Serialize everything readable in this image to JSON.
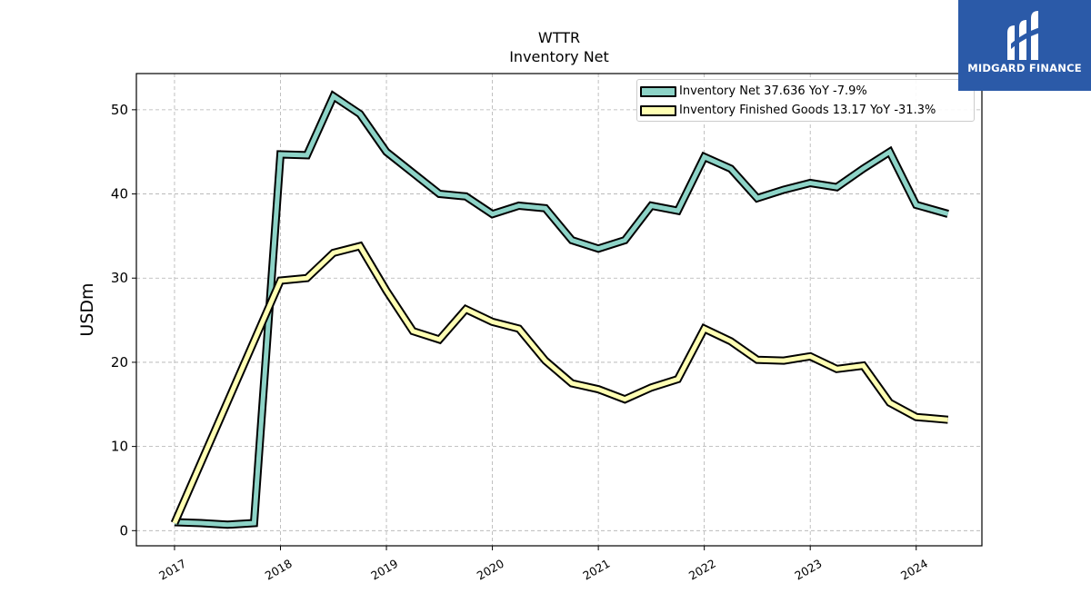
{
  "logo": {
    "name": "midgard-logo-icon",
    "text": "MIDGARD FINANCE",
    "color": "#2b5aa8"
  },
  "chart_data": {
    "type": "line",
    "title": "WTTR",
    "subtitle": "Inventory Net",
    "xlabel": "",
    "ylabel": "USDm",
    "ylim": [
      -1.8,
      54.3
    ],
    "xlim": [
      2016.64,
      2024.62
    ],
    "yticks": [
      0,
      10,
      20,
      30,
      40,
      50
    ],
    "xticks": [
      2017,
      2018,
      2019,
      2020,
      2021,
      2022,
      2023,
      2024
    ],
    "xtick_labels": [
      "2017",
      "2018",
      "2019",
      "2020",
      "2021",
      "2022",
      "2023",
      "2024"
    ],
    "grid": true,
    "legend_position": "top-right",
    "series": [
      {
        "name": "Inventory Net  37.636 YoY -7.9%",
        "color": "#8dd3c7",
        "x": [
          2017.0,
          2017.25,
          2017.5,
          2017.75,
          2018.0,
          2018.25,
          2018.5,
          2018.75,
          2019.0,
          2019.25,
          2019.5,
          2019.75,
          2020.0,
          2020.25,
          2020.5,
          2020.75,
          2021.0,
          2021.25,
          2021.5,
          2021.75,
          2022.0,
          2022.25,
          2022.5,
          2022.75,
          2023.0,
          2023.25,
          2023.5,
          2023.75,
          2024.0,
          2024.3
        ],
        "y": [
          1.0,
          0.9,
          0.7,
          0.9,
          44.7,
          44.6,
          51.6,
          49.5,
          45.0,
          42.5,
          40.0,
          39.7,
          37.6,
          38.6,
          38.3,
          34.5,
          33.5,
          34.5,
          38.6,
          38.0,
          44.4,
          43.0,
          39.5,
          40.5,
          41.3,
          40.8,
          43.0,
          45.0,
          38.7,
          37.636
        ]
      },
      {
        "name": "Inventory Finished Goods  13.17 YoY -31.3%",
        "color": "#ffffb3",
        "x": [
          2017.0,
          2018.0,
          2018.25,
          2018.5,
          2018.75,
          2019.0,
          2019.25,
          2019.5,
          2019.75,
          2020.0,
          2020.25,
          2020.5,
          2020.75,
          2021.0,
          2021.25,
          2021.5,
          2021.75,
          2022.0,
          2022.25,
          2022.5,
          2022.75,
          2023.0,
          2023.25,
          2023.5,
          2023.75,
          2024.0,
          2024.3
        ],
        "y": [
          0.9,
          29.7,
          30.0,
          33.0,
          33.8,
          28.5,
          23.7,
          22.7,
          26.3,
          24.8,
          24.0,
          20.2,
          17.5,
          16.8,
          15.6,
          17.0,
          18.0,
          24.0,
          22.5,
          20.3,
          20.2,
          20.7,
          19.2,
          19.6,
          15.2,
          13.5,
          13.17
        ]
      }
    ]
  }
}
